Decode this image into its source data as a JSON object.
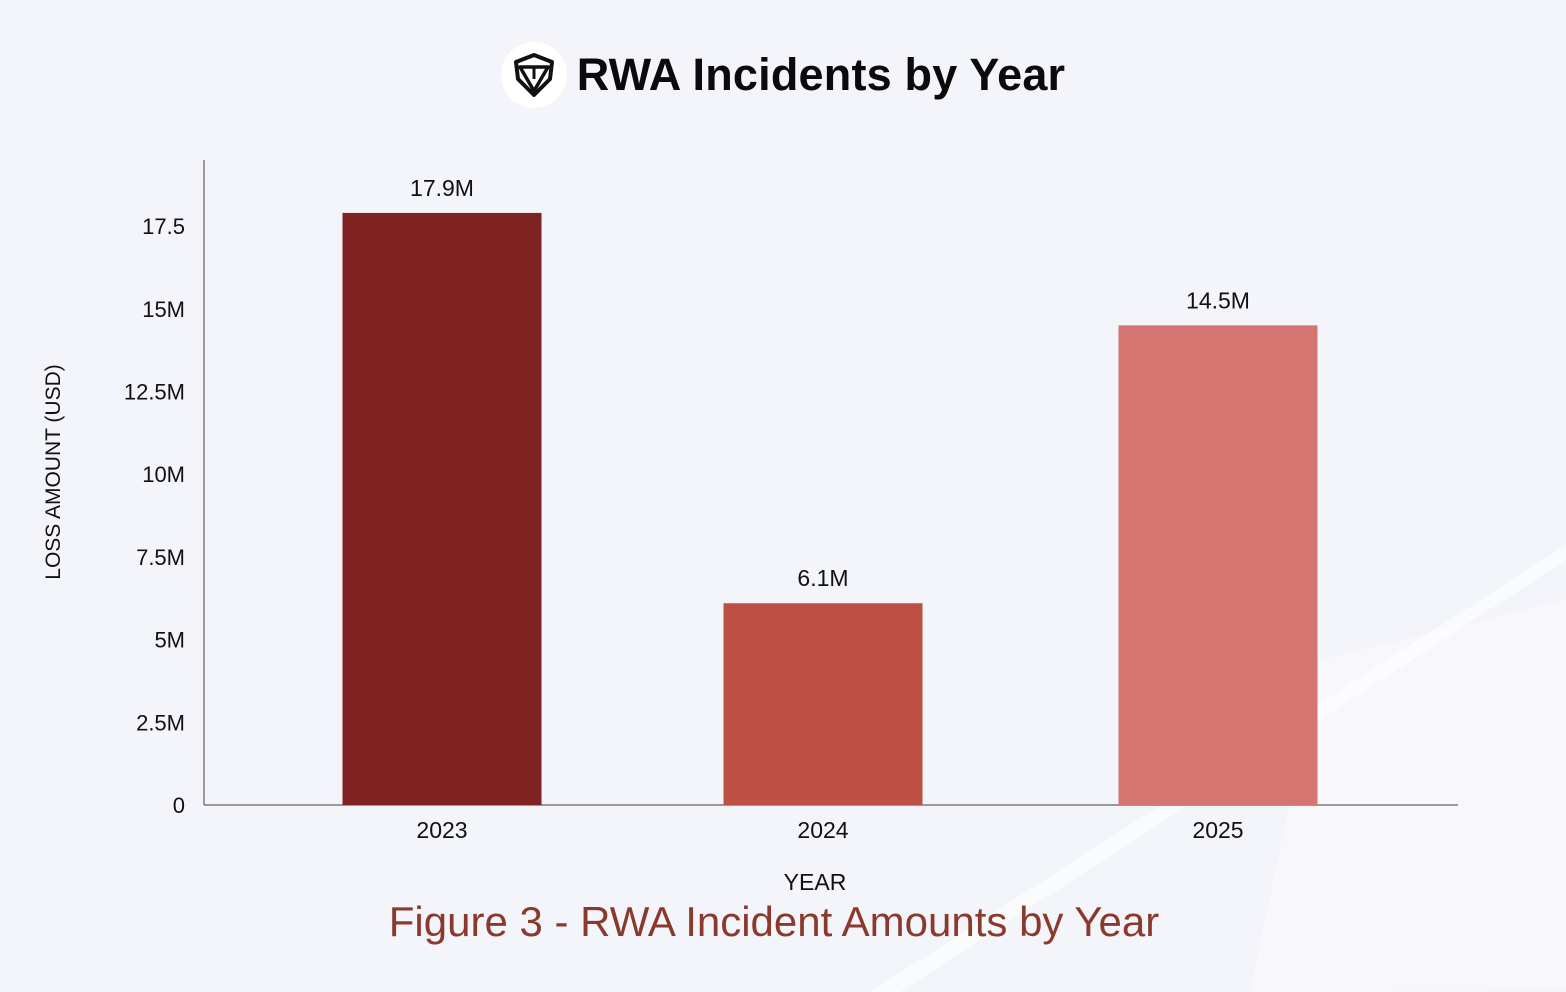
{
  "header": {
    "logo_icon": "shield-icon",
    "title": "RWA Incidents by Year"
  },
  "caption": "Figure 3 - RWA Incident Amounts by Year",
  "chart_data": {
    "type": "bar",
    "categories": [
      "2023",
      "2024",
      "2025"
    ],
    "values": [
      17.9,
      6.1,
      14.5
    ],
    "value_unit": "M USD",
    "data_labels": [
      "17.9M",
      "6.1M",
      "14.5M"
    ],
    "bar_colors": [
      "#7e2322",
      "#bd5043",
      "#d57571"
    ],
    "xlabel": "YEAR",
    "ylabel": "LOSS AMOUNT (USD)",
    "ylim": [
      0,
      19.5
    ],
    "yticks": [
      0,
      2.5,
      5,
      7.5,
      10,
      12.5,
      15,
      17.5
    ],
    "ytick_labels": [
      "0",
      "2.5M",
      "5M",
      "7.5M",
      "10M",
      "12.5M",
      "15M",
      "17.5"
    ],
    "grid": false,
    "legend": "none"
  }
}
